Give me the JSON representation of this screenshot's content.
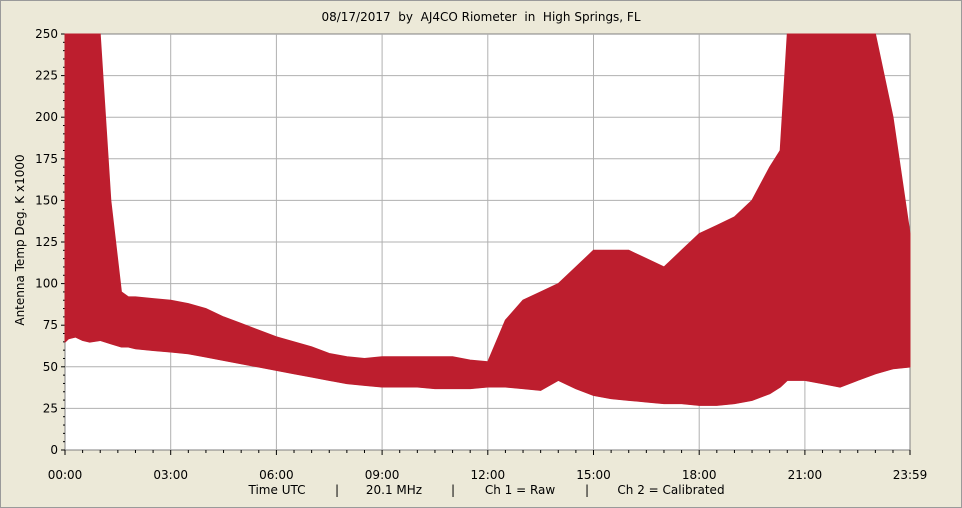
{
  "title": "08/17/2017  by  AJ4CO Riometer  in  High Springs, FL",
  "footer": {
    "time": "Time UTC",
    "sep": "|",
    "freq": "20.1 MHz",
    "ch1": "Ch 1 = Raw",
    "ch2": "Ch 2 = Calibrated"
  },
  "colors": {
    "trace": "#bd1e2e",
    "plot_bg": "#ffffff",
    "grid": "#b0b0b0",
    "window_bg": "#ece9d8"
  },
  "chart_data": {
    "type": "area",
    "title": "08/17/2017  by  AJ4CO Riometer  in  High Springs, FL",
    "xlabel": "Time UTC",
    "ylabel": "Antenna Temp Deg. K x1000",
    "x_tick_labels": [
      "00:00",
      "03:00",
      "06:00",
      "09:00",
      "12:00",
      "15:00",
      "18:00",
      "21:00",
      "23:59"
    ],
    "x_tick_hours": [
      0,
      3,
      6,
      9,
      12,
      15,
      18,
      21,
      23.983
    ],
    "y_tick_labels": [
      "0",
      "25",
      "50",
      "75",
      "100",
      "125",
      "150",
      "175",
      "200",
      "225",
      "250"
    ],
    "ylim": [
      0,
      250
    ],
    "xlim_hours": [
      0,
      23.983
    ],
    "grid": true,
    "series": [
      {
        "name": "Ch 1 = Raw",
        "color": "#bd1e2e",
        "x_hours": [
          0.0,
          0.1,
          0.3,
          0.5,
          0.7,
          1.0,
          1.3,
          1.6,
          1.8,
          2.0,
          2.5,
          3.0,
          3.5,
          4.0,
          4.5,
          5.0,
          5.5,
          6.0,
          6.5,
          7.0,
          7.5,
          8.0,
          8.5,
          9.0,
          9.5,
          10.0,
          10.5,
          11.0,
          11.5,
          12.0,
          12.5,
          13.0,
          13.5,
          14.0,
          14.5,
          15.0,
          15.5,
          16.0,
          16.5,
          17.0,
          17.5,
          18.0,
          18.5,
          19.0,
          19.5,
          20.0,
          20.3,
          20.5,
          21.0,
          21.5,
          22.0,
          22.5,
          23.0,
          23.5,
          23.983
        ],
        "lower": [
          65,
          67,
          68,
          66,
          65,
          66,
          64,
          62,
          62,
          61,
          60,
          59,
          58,
          56,
          54,
          52,
          50,
          48,
          46,
          44,
          42,
          40,
          39,
          38,
          38,
          38,
          37,
          37,
          37,
          38,
          38,
          37,
          36,
          42,
          37,
          33,
          31,
          30,
          29,
          28,
          28,
          27,
          27,
          28,
          30,
          34,
          38,
          42,
          42,
          40,
          38,
          42,
          46,
          49,
          50
        ],
        "upper": [
          250,
          250,
          250,
          250,
          250,
          250,
          150,
          95,
          92,
          92,
          91,
          90,
          88,
          85,
          80,
          76,
          72,
          68,
          65,
          62,
          58,
          56,
          55,
          56,
          56,
          56,
          56,
          56,
          54,
          53,
          78,
          90,
          95,
          100,
          110,
          120,
          120,
          120,
          115,
          110,
          120,
          130,
          135,
          140,
          150,
          170,
          180,
          250,
          250,
          250,
          250,
          250,
          250,
          200,
          130
        ]
      }
    ]
  }
}
